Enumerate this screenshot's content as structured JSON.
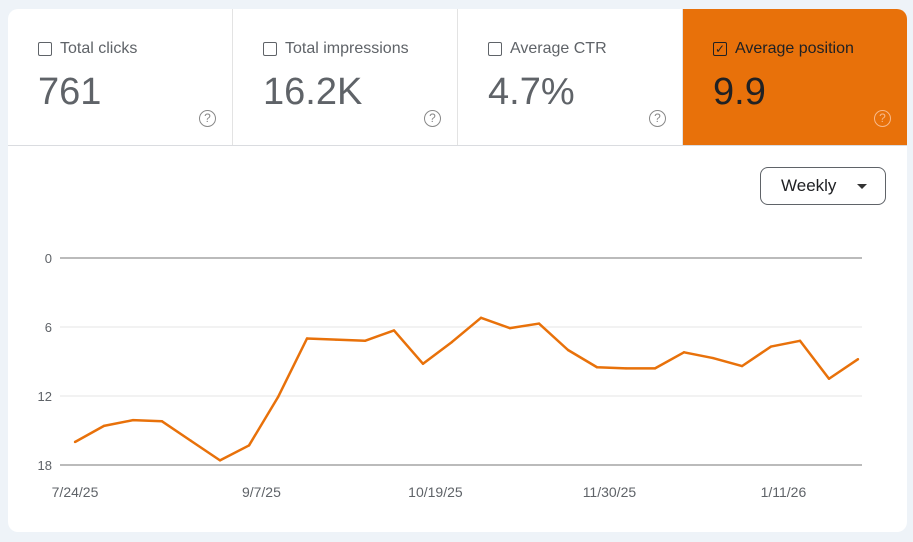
{
  "metrics": [
    {
      "label": "Total clicks",
      "value": "761",
      "checked": false
    },
    {
      "label": "Total impressions",
      "value": "16.2K",
      "checked": false
    },
    {
      "label": "Average CTR",
      "value": "4.7%",
      "checked": false
    },
    {
      "label": "Average position",
      "value": "9.9",
      "checked": true
    }
  ],
  "help_glyph": "?",
  "granularity": {
    "selected": "Weekly"
  },
  "colors": {
    "accent": "#e8710a",
    "line": "#e8710a"
  },
  "chart_data": {
    "type": "line",
    "y_inverted": true,
    "ylim": [
      0,
      18
    ],
    "yticks": [
      "0",
      "6",
      "12",
      "18"
    ],
    "xticks": [
      "7/24/25",
      "9/7/25",
      "10/19/25",
      "11/30/25",
      "1/11/26"
    ],
    "grid": true,
    "series": [
      {
        "values": [
          {
            "x": "2025-07-24",
            "y": 16.0
          },
          {
            "x": "2025-07-31",
            "y": 14.6
          },
          {
            "x": "2025-08-07",
            "y": 14.1
          },
          {
            "x": "2025-08-14",
            "y": 14.2
          },
          {
            "x": "2025-08-21",
            "y": 15.9
          },
          {
            "x": "2025-08-28",
            "y": 17.6
          },
          {
            "x": "2025-09-04",
            "y": 16.3
          },
          {
            "x": "2025-09-11",
            "y": 12.1
          },
          {
            "x": "2025-09-18",
            "y": 7.0
          },
          {
            "x": "2025-09-25",
            "y": 7.1
          },
          {
            "x": "2025-10-02",
            "y": 7.2
          },
          {
            "x": "2025-10-09",
            "y": 6.3
          },
          {
            "x": "2025-10-16",
            "y": 9.2
          },
          {
            "x": "2025-10-23",
            "y": 7.3
          },
          {
            "x": "2025-10-30",
            "y": 5.2
          },
          {
            "x": "2025-11-06",
            "y": 6.1
          },
          {
            "x": "2025-11-13",
            "y": 5.7
          },
          {
            "x": "2025-11-20",
            "y": 8.0
          },
          {
            "x": "2025-11-27",
            "y": 9.5
          },
          {
            "x": "2025-12-04",
            "y": 9.6
          },
          {
            "x": "2025-12-11",
            "y": 9.6
          },
          {
            "x": "2025-12-18",
            "y": 8.2
          },
          {
            "x": "2025-12-25",
            "y": 8.7
          },
          {
            "x": "2026-01-01",
            "y": 9.4
          },
          {
            "x": "2026-01-08",
            "y": 7.7
          },
          {
            "x": "2026-01-15",
            "y": 7.2
          },
          {
            "x": "2026-01-22",
            "y": 10.5
          },
          {
            "x": "2026-01-29",
            "y": 8.8
          }
        ]
      }
    ]
  }
}
